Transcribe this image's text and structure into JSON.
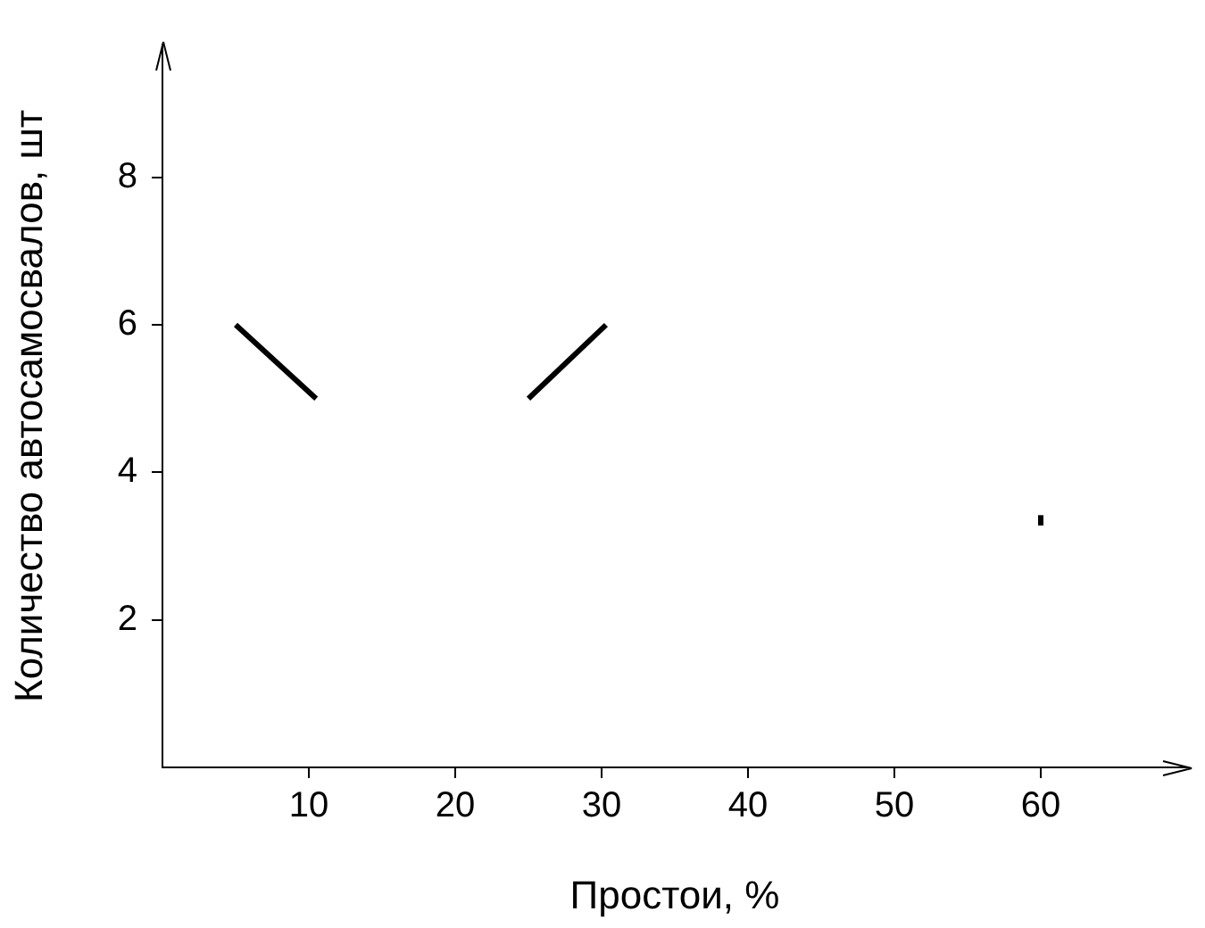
{
  "chart_data": {
    "type": "line",
    "xlabel": "Простои, %",
    "ylabel": "Количество автосамосвалов, шт",
    "xlim": [
      0,
      70
    ],
    "ylim": [
      0,
      9.8
    ],
    "xticks": [
      10,
      20,
      30,
      40,
      50,
      60
    ],
    "yticks": [
      2,
      4,
      6,
      8
    ],
    "grid": false,
    "legend": false,
    "marker": "none",
    "line_style": "solid",
    "series": [
      {
        "color": "#000000",
        "x": [
          5,
          10.5
        ],
        "values": [
          6,
          5
        ]
      },
      {
        "color": "#000000",
        "x": [
          25,
          30.3
        ],
        "values": [
          5,
          6
        ]
      },
      {
        "color": "#000000",
        "x": [
          60,
          60
        ],
        "values": [
          3.28,
          3.42
        ]
      }
    ]
  }
}
